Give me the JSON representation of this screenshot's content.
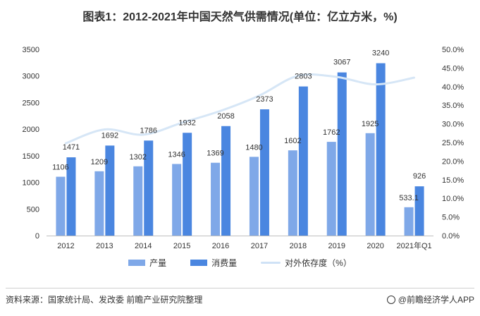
{
  "title": "图表1：2012-2021年中国天然气供需情况(单位：亿立方米，%)",
  "chart_data": {
    "type": "bar",
    "categories": [
      "2012",
      "2013",
      "2014",
      "2015",
      "2016",
      "2017",
      "2018",
      "2019",
      "2020",
      "2021年Q1"
    ],
    "series": [
      {
        "name": "产量",
        "type": "bar",
        "axis": "left",
        "color": "#7fa8e8",
        "values": [
          1106,
          1209,
          1302,
          1346,
          1369,
          1480,
          1602,
          1762,
          1925,
          533.1
        ],
        "labels": [
          "1106",
          "1209",
          "1302",
          "1346",
          "1369",
          "1480",
          "1602",
          "1762",
          "1925",
          "533.1"
        ]
      },
      {
        "name": "消费量",
        "type": "bar",
        "axis": "right_of_pair",
        "color": "#4a86e0",
        "values": [
          1471,
          1692,
          1786,
          1932,
          2058,
          2373,
          2803,
          3067,
          3240,
          926
        ],
        "labels": [
          "1471",
          "1692",
          "1786",
          "1932",
          "2058",
          "2373",
          "2803",
          "3067",
          "3240",
          "926"
        ]
      },
      {
        "name": "对外依存度（%）",
        "type": "line",
        "axis": "right",
        "color": "#d6e6f6",
        "values": [
          24.8,
          28.5,
          27.1,
          30.3,
          33.5,
          37.6,
          42.9,
          42.6,
          40.6,
          42.4
        ]
      }
    ],
    "left_axis": {
      "min": 0,
      "max": 3500,
      "ticks": [
        "0",
        "500",
        "1000",
        "1500",
        "2000",
        "2500",
        "3000",
        "3500"
      ]
    },
    "right_axis": {
      "min": 0,
      "max": 50,
      "ticks": [
        "0.0%",
        "5.0%",
        "10.0%",
        "15.0%",
        "20.0%",
        "25.0%",
        "30.0%",
        "35.0%",
        "40.0%",
        "45.0%",
        "50.0%"
      ]
    },
    "grid": false,
    "legend_position": "bottom"
  },
  "footer": {
    "source": "资料来源：国家统计局、发改委 前瞻产业研究院整理",
    "brand": "@前瞻经济学人APP"
  }
}
